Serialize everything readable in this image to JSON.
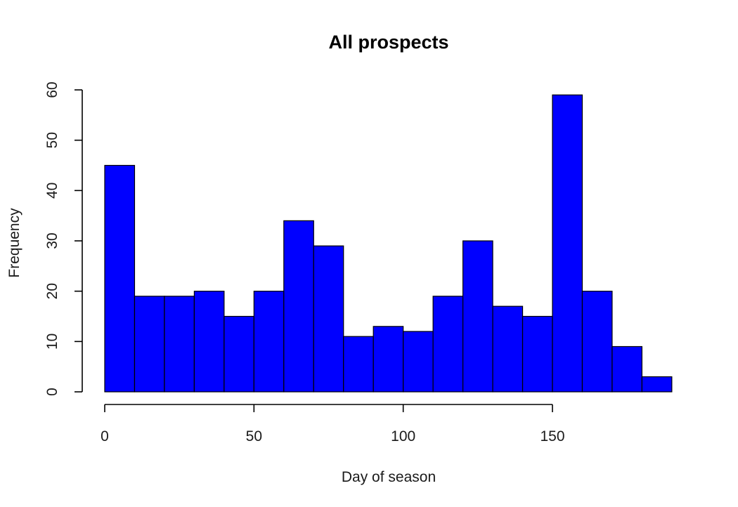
{
  "chart_data": {
    "type": "bar",
    "title": "All prospects",
    "xlabel": "Day of season",
    "ylabel": "Frequency",
    "bar_color": "#0000ff",
    "bin_width": 10,
    "bins": [
      {
        "start": 0,
        "end": 10,
        "value": 45
      },
      {
        "start": 10,
        "end": 20,
        "value": 19
      },
      {
        "start": 20,
        "end": 30,
        "value": 19
      },
      {
        "start": 30,
        "end": 40,
        "value": 20
      },
      {
        "start": 40,
        "end": 50,
        "value": 15
      },
      {
        "start": 50,
        "end": 60,
        "value": 20
      },
      {
        "start": 60,
        "end": 70,
        "value": 34
      },
      {
        "start": 70,
        "end": 80,
        "value": 29
      },
      {
        "start": 80,
        "end": 90,
        "value": 11
      },
      {
        "start": 90,
        "end": 100,
        "value": 13
      },
      {
        "start": 100,
        "end": 110,
        "value": 12
      },
      {
        "start": 110,
        "end": 120,
        "value": 19
      },
      {
        "start": 120,
        "end": 130,
        "value": 30
      },
      {
        "start": 130,
        "end": 140,
        "value": 17
      },
      {
        "start": 140,
        "end": 150,
        "value": 15
      },
      {
        "start": 150,
        "end": 160,
        "value": 59
      },
      {
        "start": 160,
        "end": 170,
        "value": 20
      },
      {
        "start": 170,
        "end": 180,
        "value": 9
      },
      {
        "start": 180,
        "end": 190,
        "value": 3
      }
    ],
    "xticks": [
      0,
      50,
      100,
      150
    ],
    "yticks": [
      0,
      10,
      20,
      30,
      40,
      50,
      60
    ],
    "xlim": [
      0,
      150
    ],
    "ylim": [
      0,
      60
    ],
    "grid": false
  }
}
